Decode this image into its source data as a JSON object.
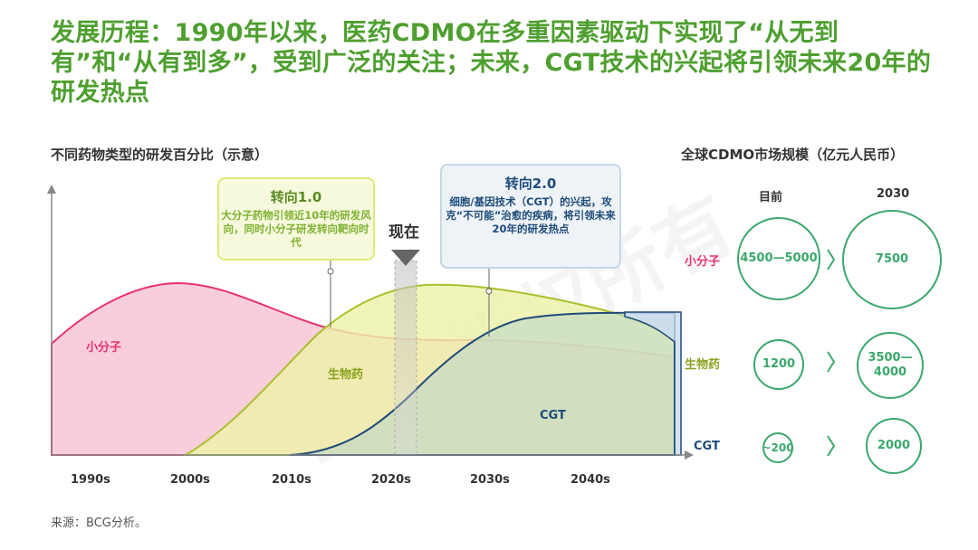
{
  "title": "发展历程：1990年以来，医药CDMO在多重因素驱动下实现了“从无到有”和“从有到多”，受到广泛的关注；未来，CGT技术的兴起将引领未来20年的研发热点",
  "left_chart_title": "不同药物类型的研发百分比（示意）",
  "right_chart_title": "全球CDMO市场规模（亿元人民币）",
  "source": "来源：BCG分析。",
  "watermark": "BCG版权所有",
  "callout_1": {
    "heading": "转向1.0",
    "body": "大分子药物引领近10年的研发风向，同时小分子研发转向靶向时代"
  },
  "callout_2": {
    "heading": "转向2.0",
    "body": "细胞/基因技术（CGT）的兴起，攻克“不可能”治愈的疾病，将引领未来20年的研发热点"
  },
  "now_label": "现在",
  "colors": {
    "small_molecule": "#e8336f",
    "biologics": "#a9c12d",
    "cgt": "#1f4b79",
    "title_green": "#4e9f2f",
    "circle_green": "#3aa86b"
  },
  "chart_data": [
    {
      "type": "area",
      "title": "不同药物类型的研发百分比（示意）",
      "x_tick_labels": [
        "1990s",
        "2000s",
        "2010s",
        "2020s",
        "2030s",
        "2040s"
      ],
      "y_axis_values_shown": false,
      "series": [
        {
          "name": "小分子",
          "shape": "rises to a peak near the early 2000s, falls through the 2010s, then declines gently"
        },
        {
          "name": "生物药",
          "shape": "starts in the 2000s, peaks in the early 2020s, then slowly declines"
        },
        {
          "name": "CGT",
          "shape": "starts in the 2010s, rises steeply through the 2020s, plateaus after the 2030s"
        }
      ],
      "marker": {
        "label": "现在",
        "at": "2020s"
      }
    },
    {
      "type": "table",
      "title": "全球CDMO市场规模（亿元人民币）",
      "columns": [
        "目前",
        "2030"
      ],
      "rows": [
        {
          "name": "小分子",
          "current": "4500—5000",
          "future": "7500"
        },
        {
          "name": "生物药",
          "current": "1200",
          "future": "3500—4000"
        },
        {
          "name": "CGT",
          "current": "~200",
          "future": "2000"
        }
      ]
    }
  ]
}
